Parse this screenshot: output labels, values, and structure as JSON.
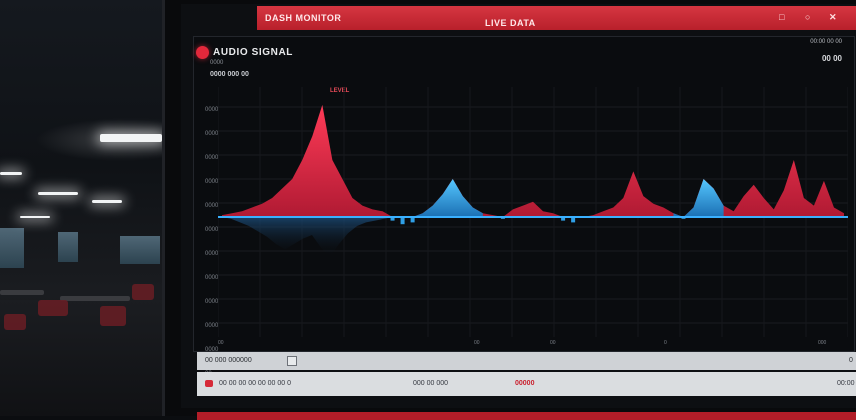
{
  "scene": {
    "description_colors": {
      "ceiling": "#f2f4f5",
      "chairs": "#6a1d24"
    }
  },
  "topbar": {
    "brand": "DASH MONITOR",
    "center": "LIVE DATA",
    "controls": [
      "□",
      "○",
      "✕"
    ]
  },
  "panel": {
    "title": "AUDIO SIGNAL",
    "subtitle": "0000",
    "metrics": "0000  000  00",
    "legend": "LEVEL",
    "meta_top": "00:00  00  00",
    "meta_bottom": "00  00"
  },
  "y_ticks": [
    "0000",
    "0000",
    "0000",
    "0000",
    "0000",
    "0000",
    "0000",
    "0000",
    "0000",
    "0000",
    "0000",
    "00"
  ],
  "x_ticks": [
    "00",
    "00",
    "00",
    "0",
    "000"
  ],
  "status": {
    "left": "00  000  000000",
    "right": "0"
  },
  "footer": {
    "items": "00 00 00 00 00 00 00 0",
    "mid": "000   00  000",
    "alert": "00000",
    "right": "00:00"
  },
  "colors": {
    "accent": "#e3283b",
    "positive": "#e8334a",
    "negative": "#2f9fe6",
    "baseline": "#3ab0ff"
  },
  "chart_data": {
    "type": "area",
    "x": [
      0,
      10,
      20,
      30,
      40,
      50,
      60,
      70,
      80,
      90,
      100,
      110,
      120,
      130,
      140,
      150,
      160,
      170,
      180,
      190,
      200,
      210,
      220,
      230,
      240,
      250,
      260,
      270,
      280,
      290,
      300,
      310,
      320,
      330,
      340,
      350,
      360,
      370,
      380,
      390,
      400,
      410,
      420,
      430,
      440,
      450,
      460,
      470,
      480,
      490,
      500,
      510,
      520,
      530,
      540,
      550,
      560,
      570,
      580,
      590,
      600,
      610,
      620
    ],
    "series": [
      {
        "values": [
          2,
          4,
          6,
          10,
          14,
          20,
          30,
          40,
          60,
          85,
          118,
          60,
          40,
          20,
          12,
          8,
          6,
          -4,
          -8,
          -6,
          4,
          12,
          24,
          40,
          22,
          10,
          4,
          2,
          -2,
          8,
          12,
          16,
          6,
          4,
          -4,
          -6,
          0,
          2,
          6,
          10,
          20,
          48,
          22,
          14,
          10,
          4,
          -2,
          10,
          40,
          30,
          12,
          6,
          22,
          34,
          20,
          8,
          28,
          60,
          20,
          12,
          38,
          10,
          4
        ]
      }
    ],
    "title": "",
    "xlabel": "",
    "ylabel": "",
    "grid": true
  }
}
